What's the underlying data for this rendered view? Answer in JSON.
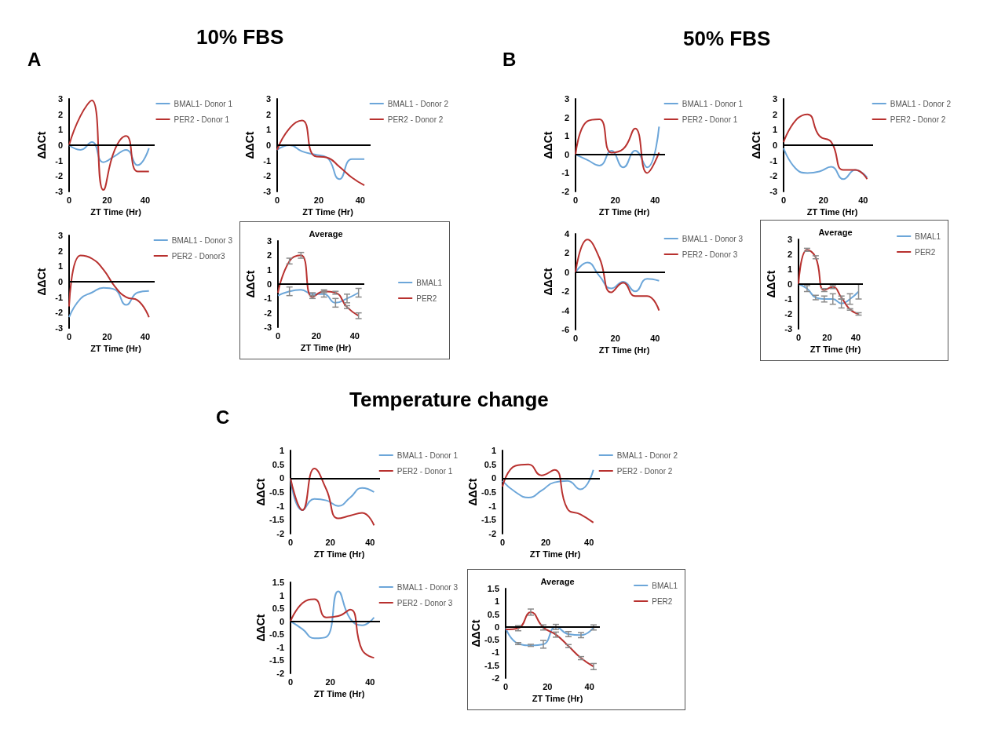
{
  "chart_data": [
    {
      "type": "line",
      "annotations": [
        "A",
        "10% FBS"
      ],
      "xlabel": "ZT Time (Hr)",
      "ylabel": "ΔΔCt",
      "x": [
        0,
        6,
        12,
        18,
        24,
        30,
        36,
        42
      ],
      "xlim": [
        0,
        45
      ],
      "xticks": [
        0,
        20,
        40
      ],
      "ylim": [
        -3,
        3
      ],
      "yticks": [
        -3,
        -2,
        -1,
        0,
        1,
        2,
        3
      ],
      "grid": false,
      "legend": "top right",
      "marker": "none",
      "ref_lines": [
        {
          "axis": "y",
          "value": 0
        }
      ],
      "series": [
        {
          "name": "BMAL1- Donor 1",
          "color": "#6ca6d9",
          "values": [
            0,
            -0.3,
            0.2,
            -1.1,
            -0.7,
            -0.3,
            -1.3,
            -0.2
          ]
        },
        {
          "name": "PER2 - Donor 1",
          "color": "#b8312f",
          "values": [
            0,
            1.9,
            2.9,
            -2.9,
            -0.3,
            0.6,
            -1.7,
            -1.7
          ]
        }
      ]
    },
    {
      "type": "line",
      "xlabel": "ZT Time (Hr)",
      "ylabel": "ΔΔCt",
      "x": [
        0,
        6,
        12,
        18,
        24,
        30,
        36,
        42
      ],
      "xlim": [
        0,
        45
      ],
      "xticks": [
        0,
        20,
        40
      ],
      "ylim": [
        -3,
        3
      ],
      "yticks": [
        -3,
        -2,
        -1,
        0,
        1,
        2,
        3
      ],
      "grid": false,
      "legend": "top right",
      "marker": "none",
      "ref_lines": [
        {
          "axis": "y",
          "value": 0
        }
      ],
      "series": [
        {
          "name": "BMAL1 - Donor 2",
          "color": "#6ca6d9",
          "values": [
            -0.3,
            0,
            -0.4,
            -0.6,
            -0.8,
            -2.2,
            -0.9,
            -0.9
          ]
        },
        {
          "name": "PER2 - Donor 2",
          "color": "#b8312f",
          "values": [
            -0.3,
            1.1,
            1.6,
            -0.7,
            -0.8,
            -1.4,
            -2.1,
            -2.6
          ]
        }
      ]
    },
    {
      "type": "line",
      "xlabel": "ZT Time (Hr)",
      "ylabel": "ΔΔCt",
      "x": [
        0,
        6,
        12,
        18,
        24,
        30,
        36,
        42
      ],
      "xlim": [
        0,
        45
      ],
      "xticks": [
        0,
        20,
        40
      ],
      "ylim": [
        -3,
        3
      ],
      "yticks": [
        -3,
        -2,
        -1,
        0,
        1,
        2,
        3
      ],
      "grid": false,
      "legend": "top right",
      "marker": "none",
      "ref_lines": [
        {
          "axis": "y",
          "value": 0
        }
      ],
      "series": [
        {
          "name": "BMAL1 - Donor 3",
          "color": "#6ca6d9",
          "values": [
            -2.3,
            -1.1,
            -0.7,
            -0.4,
            -0.5,
            -1.5,
            -0.7,
            -0.6
          ]
        },
        {
          "name": "PER2 - Donor3",
          "color": "#b8312f",
          "values": [
            -1.6,
            1.7,
            1.5,
            0.8,
            -0.3,
            -1.0,
            -1.2,
            -2.3
          ]
        }
      ]
    },
    {
      "type": "line",
      "title": "Average",
      "xlabel": "ZT Time (Hr)",
      "ylabel": "ΔΔCt",
      "x": [
        0,
        6,
        12,
        18,
        24,
        30,
        36,
        42
      ],
      "xlim": [
        0,
        45
      ],
      "xticks": [
        0,
        20,
        40
      ],
      "ylim": [
        -3,
        3
      ],
      "yticks": [
        -3,
        -2,
        -1,
        0,
        1,
        2,
        3
      ],
      "grid": false,
      "legend": "right",
      "marker": "none",
      "ref_lines": [
        {
          "axis": "y",
          "value": 0
        }
      ],
      "series": [
        {
          "name": "BMAL1",
          "color": "#6ca6d9",
          "values": [
            -0.8,
            -0.5,
            -0.4,
            -0.7,
            -0.7,
            -1.3,
            -1.0,
            -0.6
          ],
          "errors": [
            null,
            0.3,
            null,
            0.1,
            0.2,
            0.3,
            0.3,
            0.3
          ]
        },
        {
          "name": "PER2",
          "color": "#b8312f",
          "values": [
            -0.6,
            1.6,
            2.0,
            -0.9,
            -0.5,
            -0.6,
            -1.6,
            -2.2
          ],
          "errors": [
            null,
            0.2,
            0.2,
            0.1,
            0.1,
            0.1,
            0.1,
            0.2
          ]
        }
      ]
    },
    {
      "type": "line",
      "annotations": [
        "B",
        "50% FBS"
      ],
      "xlabel": "ZT Time (Hr)",
      "ylabel": "ΔΔCt",
      "x": [
        0,
        6,
        12,
        18,
        24,
        30,
        36,
        42
      ],
      "xlim": [
        0,
        45
      ],
      "xticks": [
        0,
        20,
        40
      ],
      "ylim": [
        -2,
        3
      ],
      "yticks": [
        -2,
        -1,
        0,
        1,
        2,
        3
      ],
      "grid": false,
      "legend": "top right",
      "marker": "none",
      "ref_lines": [
        {
          "axis": "y",
          "value": 0
        }
      ],
      "series": [
        {
          "name": "BMAL1 - Donor 1",
          "color": "#6ca6d9",
          "values": [
            0,
            -0.3,
            -0.6,
            0.2,
            -0.7,
            0.2,
            -0.7,
            1.5
          ]
        },
        {
          "name": "PER2 - Donor 1",
          "color": "#b8312f",
          "values": [
            0,
            1.8,
            1.9,
            0.1,
            0.3,
            1.4,
            -1.0,
            0.1
          ]
        }
      ]
    },
    {
      "type": "line",
      "xlabel": "ZT Time (Hr)",
      "ylabel": "ΔΔCt",
      "x": [
        0,
        6,
        12,
        18,
        24,
        30,
        36,
        42
      ],
      "xlim": [
        0,
        45
      ],
      "xticks": [
        0,
        20,
        40
      ],
      "ylim": [
        -3,
        3
      ],
      "yticks": [
        -3,
        -2,
        -1,
        0,
        1,
        2,
        3
      ],
      "grid": false,
      "legend": "top right",
      "marker": "none",
      "ref_lines": [
        {
          "axis": "y",
          "value": 0
        }
      ],
      "series": [
        {
          "name": "BMAL1 - Donor 2",
          "color": "#6ca6d9",
          "values": [
            -0.2,
            -1.5,
            -1.8,
            -1.7,
            -1.4,
            -2.2,
            -1.6,
            -2.1
          ]
        },
        {
          "name": "PER2 - Donor 2",
          "color": "#b8312f",
          "values": [
            0.2,
            1.6,
            2.0,
            0.6,
            0.2,
            -1.6,
            -1.6,
            -2.2
          ]
        }
      ]
    },
    {
      "type": "line",
      "xlabel": "ZT Time (Hr)",
      "ylabel": "ΔΔCt",
      "x": [
        0,
        6,
        12,
        18,
        24,
        30,
        36,
        42
      ],
      "xlim": [
        0,
        45
      ],
      "xticks": [
        0,
        20,
        40
      ],
      "ylim": [
        -6,
        4
      ],
      "yticks": [
        -6,
        -4,
        -2,
        0,
        2,
        4
      ],
      "grid": false,
      "legend": "top right",
      "marker": "none",
      "ref_lines": [
        {
          "axis": "y",
          "value": 0
        }
      ],
      "series": [
        {
          "name": "BMAL1 - Donor 3",
          "color": "#6ca6d9",
          "values": [
            0,
            1.0,
            -0.4,
            -1.7,
            -1.0,
            -2.0,
            -0.7,
            -0.9
          ]
        },
        {
          "name": "PER2 - Donor 3",
          "color": "#b8312f",
          "values": [
            0,
            3.4,
            1.5,
            -2.1,
            -1.1,
            -2.5,
            -2.5,
            -4.0
          ]
        }
      ]
    },
    {
      "type": "line",
      "title": "Average",
      "xlabel": "ZT Time (Hr)",
      "ylabel": "ΔΔCt",
      "x": [
        0,
        6,
        12,
        18,
        24,
        30,
        36,
        42
      ],
      "xlim": [
        0,
        45
      ],
      "xticks": [
        0,
        20,
        40
      ],
      "ylim": [
        -3,
        3
      ],
      "yticks": [
        -3,
        -2,
        -1,
        0,
        1,
        2,
        3
      ],
      "grid": false,
      "legend": "top right",
      "marker": "none",
      "ref_lines": [
        {
          "axis": "y",
          "value": 0
        }
      ],
      "series": [
        {
          "name": "BMAL1",
          "color": "#6ca6d9",
          "values": [
            0,
            -0.3,
            -0.9,
            -1.0,
            -1.0,
            -1.3,
            -1.0,
            -0.5
          ],
          "errors": [
            null,
            0.2,
            0.15,
            0.2,
            0.35,
            0.3,
            0.35,
            0.5
          ]
        },
        {
          "name": "PER2",
          "color": "#b8312f",
          "values": [
            0,
            2.3,
            1.8,
            -0.4,
            -0.2,
            -0.9,
            -1.7,
            -2.0
          ],
          "errors": [
            null,
            0.1,
            0.1,
            0.1,
            0.1,
            0.1,
            0.05,
            0.08
          ]
        }
      ]
    },
    {
      "type": "line",
      "annotations": [
        "C",
        "Temperature change"
      ],
      "xlabel": "ZT Time (Hr)",
      "ylabel": "ΔΔCt",
      "x": [
        0,
        6,
        12,
        18,
        24,
        30,
        36,
        42
      ],
      "xlim": [
        0,
        45
      ],
      "xticks": [
        0,
        20,
        40
      ],
      "ylim": [
        -2,
        1
      ],
      "yticks": [
        -2,
        -1.5,
        -1,
        -0.5,
        0,
        0.5,
        1
      ],
      "grid": false,
      "legend": "top right",
      "marker": "none",
      "ref_lines": [
        {
          "axis": "y",
          "value": 0
        }
      ],
      "series": [
        {
          "name": "BMAL1 - Donor 1",
          "color": "#6ca6d9",
          "values": [
            0,
            -1.15,
            -0.75,
            -0.8,
            -1.0,
            -0.7,
            -0.35,
            -0.5
          ]
        },
        {
          "name": "PER2 - Donor 1",
          "color": "#b8312f",
          "values": [
            0,
            -1.15,
            0.35,
            -0.4,
            -1.45,
            -1.35,
            -1.25,
            -1.7
          ]
        }
      ]
    },
    {
      "type": "line",
      "xlabel": "ZT Time (Hr)",
      "ylabel": "ΔΔCt",
      "x": [
        0,
        6,
        12,
        18,
        24,
        30,
        36,
        42
      ],
      "xlim": [
        0,
        45
      ],
      "xticks": [
        0,
        20,
        40
      ],
      "ylim": [
        -2,
        1
      ],
      "yticks": [
        -2,
        -1.5,
        -1,
        -0.5,
        0,
        0.5,
        1
      ],
      "grid": false,
      "legend": "top right",
      "marker": "none",
      "ref_lines": [
        {
          "axis": "y",
          "value": 0
        }
      ],
      "series": [
        {
          "name": "BMAL1 - Donor 2",
          "color": "#6ca6d9",
          "values": [
            -0.1,
            -0.5,
            -0.7,
            -0.45,
            -0.15,
            -0.1,
            -0.4,
            0.3
          ]
        },
        {
          "name": "PER2 - Donor 2",
          "color": "#b8312f",
          "values": [
            -0.3,
            0.45,
            0.5,
            0.1,
            0.3,
            -1.1,
            -1.3,
            -1.6
          ]
        }
      ]
    },
    {
      "type": "line",
      "xlabel": "ZT Time (Hr)",
      "ylabel": "ΔΔCt",
      "x": [
        0,
        6,
        12,
        18,
        24,
        30,
        36,
        42
      ],
      "xlim": [
        0,
        45
      ],
      "xticks": [
        0,
        20,
        40
      ],
      "ylim": [
        -2,
        1.5
      ],
      "yticks": [
        -2,
        -1.5,
        -1,
        -0.5,
        0,
        0.5,
        1,
        1.5
      ],
      "grid": false,
      "legend": "top right",
      "marker": "none",
      "ref_lines": [
        {
          "axis": "y",
          "value": 0
        }
      ],
      "series": [
        {
          "name": "BMAL1 - Donor 3",
          "color": "#6ca6d9",
          "values": [
            0,
            -0.3,
            -0.65,
            -0.6,
            1.15,
            0.1,
            -0.15,
            0.15
          ]
        },
        {
          "name": "PER2 - Donor 3",
          "color": "#b8312f",
          "values": [
            0,
            0.7,
            0.85,
            0.15,
            0.2,
            0.45,
            -1.1,
            -1.4
          ]
        }
      ]
    },
    {
      "type": "line",
      "title": "Average",
      "xlabel": "ZT Time (Hr)",
      "ylabel": "ΔΔCt",
      "x": [
        0,
        6,
        12,
        18,
        24,
        30,
        36,
        42
      ],
      "xlim": [
        0,
        45
      ],
      "xticks": [
        0,
        20,
        40
      ],
      "ylim": [
        -2,
        1.5
      ],
      "yticks": [
        -2,
        -1.5,
        -1,
        -0.5,
        0,
        0.5,
        1,
        1.5
      ],
      "grid": false,
      "legend": "top right",
      "marker": "none",
      "ref_lines": [
        {
          "axis": "y",
          "value": 0
        }
      ],
      "series": [
        {
          "name": "BMAL1",
          "color": "#6ca6d9",
          "values": [
            -0.05,
            -0.65,
            -0.72,
            -0.68,
            0,
            -0.28,
            -0.32,
            -0.02
          ],
          "errors": [
            null,
            0.04,
            0.04,
            0.15,
            0.1,
            0.1,
            0.1,
            0.1
          ]
        },
        {
          "name": "PER2",
          "color": "#b8312f",
          "values": [
            -0.1,
            -0.05,
            0.58,
            -0.02,
            -0.3,
            -0.75,
            -1.22,
            -1.55
          ],
          "errors": [
            null,
            0.1,
            0.12,
            0.1,
            0.1,
            0.06,
            0.06,
            0.12
          ]
        }
      ]
    }
  ]
}
